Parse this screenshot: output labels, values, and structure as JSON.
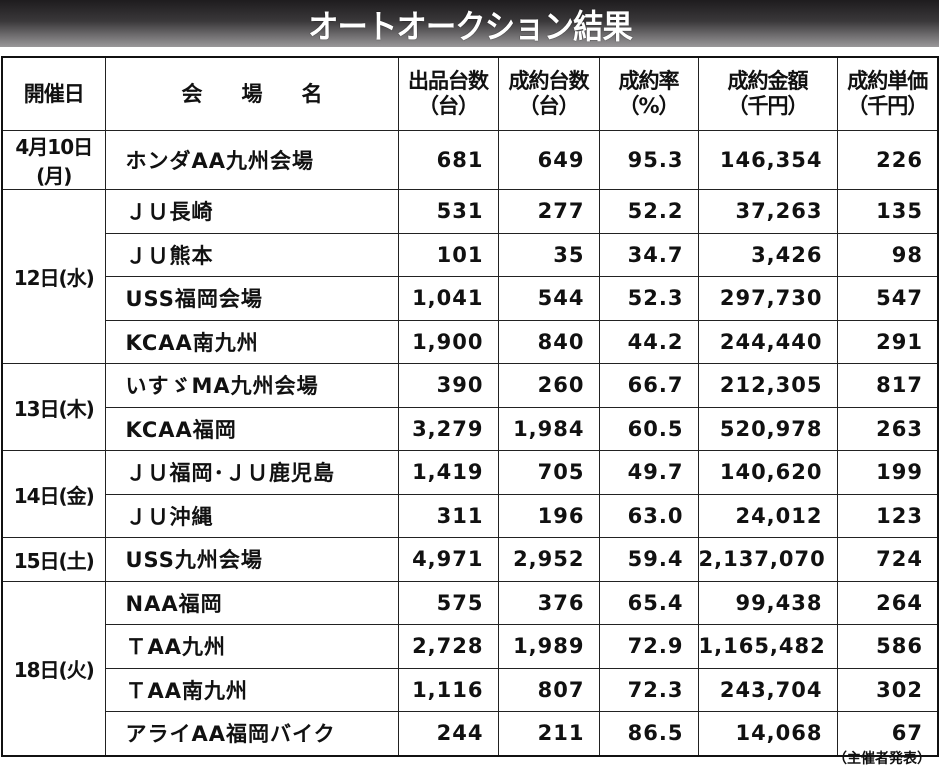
{
  "title": "オートオークション結果",
  "headers": [
    "開催日",
    "会　　場　　名",
    "出品台数\n（台）",
    "成約台数\n（台）",
    "成約率\n（%）",
    "成約金額\n（千円）",
    "成約単価\n（千円）"
  ],
  "groups": [
    {
      "date": "4月10日(月)",
      "rows": [
        [
          "ホンダAA九州会場",
          "681",
          "649",
          "95.3",
          "146,354",
          "226"
        ]
      ]
    },
    {
      "date": "12日(水)",
      "rows": [
        [
          "ＪＵ長崎",
          "531",
          "277",
          "52.2",
          "37,263",
          "135"
        ],
        [
          "ＪＵ熊本",
          "101",
          "35",
          "34.7",
          "3,426",
          "98"
        ],
        [
          "USS福岡会場",
          "1,041",
          "544",
          "52.3",
          "297,730",
          "547"
        ],
        [
          "KCAA南九州",
          "1,900",
          "840",
          "44.2",
          "244,440",
          "291"
        ]
      ]
    },
    {
      "date": "13日(木)",
      "rows": [
        [
          "いすゞMA九州会場",
          "390",
          "260",
          "66.7",
          "212,305",
          "817"
        ],
        [
          "KCAA福岡",
          "3,279",
          "1,984",
          "60.5",
          "520,978",
          "263"
        ]
      ]
    },
    {
      "date": "14日(金)",
      "rows": [
        [
          "ＪＵ福岡･ＪＵ鹿児島",
          "1,419",
          "705",
          "49.7",
          "140,620",
          "199"
        ],
        [
          "ＪＵ沖縄",
          "311",
          "196",
          "63.0",
          "24,012",
          "123"
        ]
      ]
    },
    {
      "date": "15日(土)",
      "rows": [
        [
          "USS九州会場",
          "4,971",
          "2,952",
          "59.4",
          "2,137,070",
          "724"
        ]
      ]
    },
    {
      "date": "18日(火)",
      "rows": [
        [
          "NAA福岡",
          "575",
          "376",
          "65.4",
          "99,438",
          "264"
        ],
        [
          "ＴAA九州",
          "2,728",
          "1,989",
          "72.9",
          "1,165,482",
          "586"
        ],
        [
          "ＴAA南九州",
          "1,116",
          "807",
          "72.3",
          "243,704",
          "302"
        ],
        [
          "アライAA福岡バイク",
          "244",
          "211",
          "86.5",
          "14,068",
          "67"
        ]
      ]
    }
  ],
  "footer": "（主催者発表）"
}
